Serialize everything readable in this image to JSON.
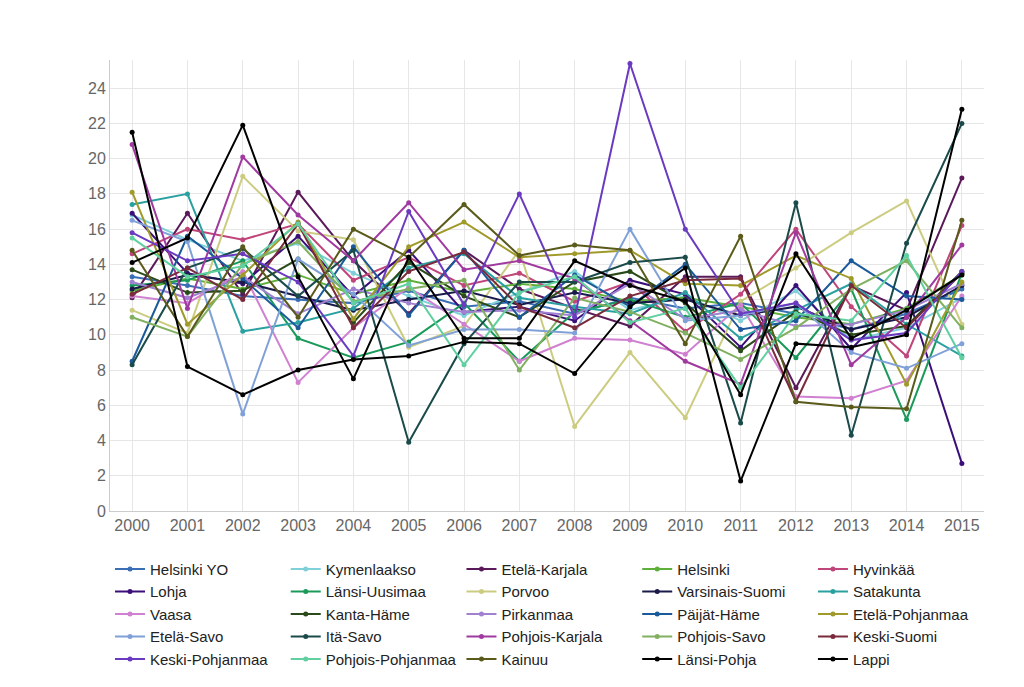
{
  "chart_data": {
    "type": "line",
    "marker": "circle",
    "grid": true,
    "legend": "bottom",
    "x": [
      2000,
      2001,
      2002,
      2003,
      2004,
      2005,
      2006,
      2007,
      2008,
      2009,
      2010,
      2011,
      2012,
      2013,
      2014,
      2015
    ],
    "xlim": [
      1999.6,
      2015.4
    ],
    "xticks": [
      2000,
      2001,
      2002,
      2003,
      2004,
      2005,
      2006,
      2007,
      2008,
      2009,
      2010,
      2011,
      2012,
      2013,
      2014,
      2015
    ],
    "ylim": [
      0,
      25.6
    ],
    "yticks": [
      0,
      2,
      4,
      6,
      8,
      10,
      12,
      14,
      16,
      18,
      20,
      22,
      24
    ],
    "series": [
      {
        "name": "Helsinki YO",
        "color": "#3a6fb5",
        "values": [
          13.3,
          12.8,
          12.2,
          12.0,
          11.8,
          12.5,
          11.6,
          11.9,
          11.2,
          12.1,
          11.5,
          11.8,
          11.2,
          10.3,
          11.2,
          12.6
        ]
      },
      {
        "name": "Kymenlaakso",
        "color": "#7fd0d8",
        "values": [
          16.8,
          15.4,
          14.2,
          15.2,
          13.5,
          12.2,
          11.1,
          12.4,
          13.6,
          11.4,
          12.2,
          10.8,
          12.5,
          9.7,
          10.4,
          12.1
        ]
      },
      {
        "name": "Etelä-Karjala",
        "color": "#5a1a5a",
        "values": [
          12.1,
          16.9,
          12.3,
          18.1,
          14.2,
          11.2,
          14.8,
          12.6,
          11.5,
          10.5,
          13.3,
          13.3,
          7.0,
          12.8,
          11.4,
          18.9
        ]
      },
      {
        "name": "Helsinki",
        "color": "#5fb03a",
        "values": [
          12.5,
          13.2,
          12.6,
          13.4,
          12.3,
          13.1,
          12.4,
          12.9,
          12.6,
          11.9,
          12.1,
          11.6,
          11.0,
          10.6,
          11.5,
          13.4
        ]
      },
      {
        "name": "Hyvinkää",
        "color": "#c0457a",
        "values": [
          14.6,
          16.0,
          15.4,
          16.3,
          13.1,
          14.4,
          12.8,
          13.5,
          11.9,
          13.0,
          10.2,
          12.3,
          16.0,
          11.6,
          8.8,
          16.2
        ]
      },
      {
        "name": "Lohja",
        "color": "#3b0f7a",
        "values": [
          16.9,
          13.5,
          12.9,
          15.6,
          12.2,
          14.8,
          11.3,
          11.6,
          10.8,
          13.1,
          12.3,
          9.3,
          12.8,
          9.2,
          12.4,
          2.7
        ]
      },
      {
        "name": "Länsi-Uusimaa",
        "color": "#1a9a5a",
        "values": [
          12.8,
          13.1,
          14.2,
          9.8,
          8.7,
          9.6,
          11.8,
          8.5,
          11.3,
          12.0,
          11.0,
          11.8,
          8.7,
          12.6,
          5.2,
          13.5
        ]
      },
      {
        "name": "Porvoo",
        "color": "#cccc80",
        "values": [
          11.4,
          10.1,
          19.0,
          15.9,
          15.4,
          9.3,
          10.5,
          14.8,
          4.8,
          9.0,
          5.3,
          11.9,
          13.8,
          15.8,
          17.6,
          10.6
        ]
      },
      {
        "name": "Varsinais-Suomi",
        "color": "#1a1a4a",
        "values": [
          12.6,
          13.4,
          13.0,
          12.2,
          11.4,
          12.0,
          12.5,
          11.7,
          12.4,
          11.8,
          12.0,
          11.1,
          11.6,
          10.3,
          11.0,
          12.8
        ]
      },
      {
        "name": "Satakunta",
        "color": "#2aa0a0",
        "values": [
          17.4,
          18.0,
          10.2,
          10.7,
          11.5,
          13.8,
          14.6,
          12.1,
          11.6,
          11.2,
          12.4,
          9.8,
          11.4,
          12.9,
          10.6,
          8.8
        ]
      },
      {
        "name": "Vaasa",
        "color": "#d080d0",
        "values": [
          12.2,
          11.8,
          13.6,
          7.3,
          10.4,
          12.7,
          10.6,
          8.5,
          9.8,
          9.7,
          8.9,
          11.7,
          6.5,
          6.4,
          7.4,
          12.2
        ]
      },
      {
        "name": "Kanta-Häme",
        "color": "#2a4a1a",
        "values": [
          13.7,
          12.4,
          12.5,
          14.3,
          10.7,
          14.1,
          12.2,
          11.0,
          13.0,
          13.6,
          11.8,
          9.1,
          11.3,
          10.0,
          10.5,
          13.6
        ]
      },
      {
        "name": "Pirkanmaa",
        "color": "#a080d0",
        "values": [
          13.0,
          12.1,
          13.3,
          11.2,
          12.6,
          11.8,
          11.3,
          11.4,
          11.1,
          12.9,
          10.9,
          11.4,
          10.5,
          10.6,
          11.4,
          12.9
        ]
      },
      {
        "name": "Päijät-Häme",
        "color": "#1a5a9a",
        "values": [
          8.5,
          15.6,
          13.2,
          10.4,
          15.0,
          11.1,
          14.8,
          11.0,
          13.4,
          11.6,
          14.0,
          10.3,
          10.8,
          14.2,
          12.2,
          12.0
        ]
      },
      {
        "name": "Etelä-Pohjanmaa",
        "color": "#a09a2a",
        "values": [
          18.1,
          10.6,
          13.4,
          16.4,
          10.9,
          15.0,
          16.4,
          14.4,
          14.6,
          14.8,
          12.9,
          12.8,
          14.5,
          13.2,
          7.2,
          13.0
        ]
      },
      {
        "name": "Etelä-Savo",
        "color": "#80a0d8",
        "values": [
          16.5,
          15.3,
          5.5,
          14.3,
          12.3,
          9.4,
          10.3,
          10.3,
          10.1,
          16.0,
          10.8,
          11.1,
          11.8,
          9.0,
          8.1,
          9.5
        ]
      },
      {
        "name": "Itä-Savo",
        "color": "#1a4a4a",
        "values": [
          8.3,
          13.8,
          14.9,
          12.2,
          14.8,
          3.9,
          9.5,
          13.0,
          13.0,
          14.1,
          14.4,
          5.0,
          17.5,
          4.3,
          15.2,
          22.0
        ]
      },
      {
        "name": "Pohjois-Karjala",
        "color": "#a03aa0",
        "values": [
          20.8,
          11.5,
          20.1,
          16.8,
          14.2,
          17.5,
          13.7,
          14.2,
          13.2,
          10.8,
          8.5,
          7.2,
          15.8,
          8.3,
          11.0,
          15.1
        ]
      },
      {
        "name": "Pohjois-Savo",
        "color": "#80b060",
        "values": [
          11.0,
          9.9,
          14.0,
          15.3,
          11.9,
          12.6,
          13.1,
          8.0,
          12.1,
          11.3,
          10.1,
          8.6,
          10.4,
          12.6,
          14.2,
          10.4
        ]
      },
      {
        "name": "Keski-Suomi",
        "color": "#7a2a3a",
        "values": [
          12.3,
          13.8,
          12.0,
          16.3,
          10.4,
          13.6,
          14.7,
          11.6,
          10.4,
          12.2,
          13.1,
          13.2,
          6.2,
          12.8,
          10.4,
          13.5
        ]
      },
      {
        "name": "Keski-Pohjanmaa",
        "color": "#6a3ac0",
        "values": [
          15.8,
          14.2,
          14.6,
          13.0,
          8.8,
          17.0,
          11.7,
          18.0,
          11.0,
          25.4,
          16.0,
          11.2,
          11.8,
          9.7,
          10.1,
          13.6
        ]
      },
      {
        "name": "Pohjois-Pohjanmaa",
        "color": "#60d0a0",
        "values": [
          15.5,
          13.3,
          13.9,
          16.3,
          11.8,
          12.9,
          8.3,
          12.4,
          13.3,
          10.7,
          11.5,
          7.0,
          11.2,
          10.8,
          14.5,
          8.7
        ]
      },
      {
        "name": "Kainuu",
        "color": "#5a5a1a",
        "values": [
          14.8,
          9.9,
          15.0,
          11.0,
          16.0,
          14.4,
          17.4,
          14.5,
          15.1,
          14.8,
          9.5,
          15.6,
          6.2,
          5.9,
          5.8,
          16.5
        ]
      },
      {
        "name": "Länsi-Pohja",
        "color": "#000000",
        "values": [
          21.5,
          8.2,
          6.6,
          8.0,
          8.6,
          8.8,
          9.6,
          9.5,
          7.8,
          11.6,
          13.8,
          1.7,
          9.5,
          9.3,
          10.0,
          22.8
        ]
      },
      {
        "name": "Lappi",
        "color": "#000000",
        "values": [
          14.1,
          15.5,
          21.9,
          13.3,
          7.5,
          14.4,
          9.8,
          9.8,
          14.2,
          12.8,
          11.9,
          6.6,
          14.6,
          9.8,
          11.4,
          13.4
        ]
      }
    ]
  }
}
